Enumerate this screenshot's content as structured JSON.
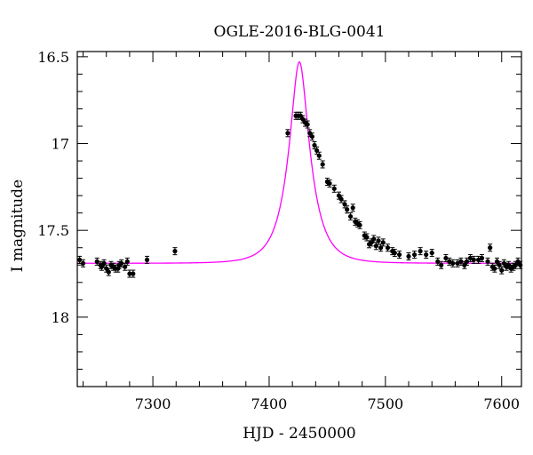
{
  "chart_data": {
    "type": "scatter",
    "title": "OGLE-2016-BLG-0041",
    "xlabel": "HJD - 2450000",
    "ylabel": "I magnitude",
    "xlim": [
      7235,
      7617
    ],
    "ylim": [
      18.4,
      16.47
    ],
    "y_inverted": true,
    "x_ticks": [
      7300,
      7400,
      7500,
      7600
    ],
    "x_tick_labels": [
      "7300",
      "7400",
      "7500",
      "7600"
    ],
    "y_ticks": [
      16.5,
      17,
      17.5,
      18
    ],
    "y_tick_labels": [
      "16.5",
      "17",
      "17.5",
      "18"
    ],
    "grid": false,
    "model_color": "#ff00ff",
    "point_color": "#000000",
    "model": {
      "t0": 7426,
      "tE": 18,
      "u0": 0.36,
      "baseline_mag": 17.69,
      "x_range": [
        7235,
        7617
      ]
    },
    "series": [
      {
        "points": [
          [
            7237,
            17.67
          ],
          [
            7240,
            17.69
          ],
          [
            7252,
            17.68
          ],
          [
            7255,
            17.7
          ],
          [
            7256,
            17.71
          ],
          [
            7258,
            17.69
          ],
          [
            7260,
            17.72
          ],
          [
            7262,
            17.74
          ],
          [
            7264,
            17.7
          ],
          [
            7266,
            17.71
          ],
          [
            7268,
            17.72
          ],
          [
            7270,
            17.72
          ],
          [
            7271,
            17.7
          ],
          [
            7273,
            17.69
          ],
          [
            7276,
            17.71
          ],
          [
            7278,
            17.68
          ],
          [
            7280,
            17.75
          ],
          [
            7283,
            17.75
          ],
          [
            7295,
            17.67
          ],
          [
            7319,
            17.62
          ],
          [
            7416,
            16.94
          ],
          [
            7423,
            16.84
          ],
          [
            7425,
            16.84
          ],
          [
            7427,
            16.84
          ],
          [
            7429,
            16.86
          ],
          [
            7431,
            16.88
          ],
          [
            7433,
            16.89
          ],
          [
            7435,
            16.94
          ],
          [
            7437,
            16.96
          ],
          [
            7439,
            17.01
          ],
          [
            7441,
            17.04
          ],
          [
            7443,
            17.07
          ],
          [
            7446,
            17.12
          ],
          [
            7450,
            17.22
          ],
          [
            7452,
            17.23
          ],
          [
            7456,
            17.26
          ],
          [
            7460,
            17.3
          ],
          [
            7462,
            17.32
          ],
          [
            7465,
            17.35
          ],
          [
            7467,
            17.38
          ],
          [
            7470,
            17.42
          ],
          [
            7472,
            17.37
          ],
          [
            7474,
            17.45
          ],
          [
            7476,
            17.46
          ],
          [
            7478,
            17.47
          ],
          [
            7482,
            17.53
          ],
          [
            7484,
            17.54
          ],
          [
            7486,
            17.58
          ],
          [
            7488,
            17.57
          ],
          [
            7490,
            17.55
          ],
          [
            7492,
            17.59
          ],
          [
            7494,
            17.56
          ],
          [
            7496,
            17.6
          ],
          [
            7498,
            17.57
          ],
          [
            7502,
            17.6
          ],
          [
            7506,
            17.62
          ],
          [
            7508,
            17.63
          ],
          [
            7512,
            17.64
          ],
          [
            7520,
            17.65
          ],
          [
            7525,
            17.64
          ],
          [
            7530,
            17.62
          ],
          [
            7535,
            17.64
          ],
          [
            7540,
            17.63
          ],
          [
            7545,
            17.68
          ],
          [
            7548,
            17.7
          ],
          [
            7552,
            17.66
          ],
          [
            7555,
            17.68
          ],
          [
            7558,
            17.69
          ],
          [
            7562,
            17.69
          ],
          [
            7565,
            17.68
          ],
          [
            7568,
            17.7
          ],
          [
            7570,
            17.68
          ],
          [
            7573,
            17.66
          ],
          [
            7576,
            17.67
          ],
          [
            7580,
            17.67
          ],
          [
            7583,
            17.66
          ],
          [
            7588,
            17.68
          ],
          [
            7590,
            17.6
          ],
          [
            7592,
            17.71
          ],
          [
            7594,
            17.72
          ],
          [
            7596,
            17.68
          ],
          [
            7598,
            17.7
          ],
          [
            7600,
            17.73
          ],
          [
            7602,
            17.69
          ],
          [
            7604,
            17.71
          ],
          [
            7606,
            17.7
          ],
          [
            7608,
            17.72
          ],
          [
            7610,
            17.71
          ],
          [
            7612,
            17.7
          ],
          [
            7614,
            17.68
          ],
          [
            7616,
            17.7
          ]
        ]
      }
    ]
  }
}
